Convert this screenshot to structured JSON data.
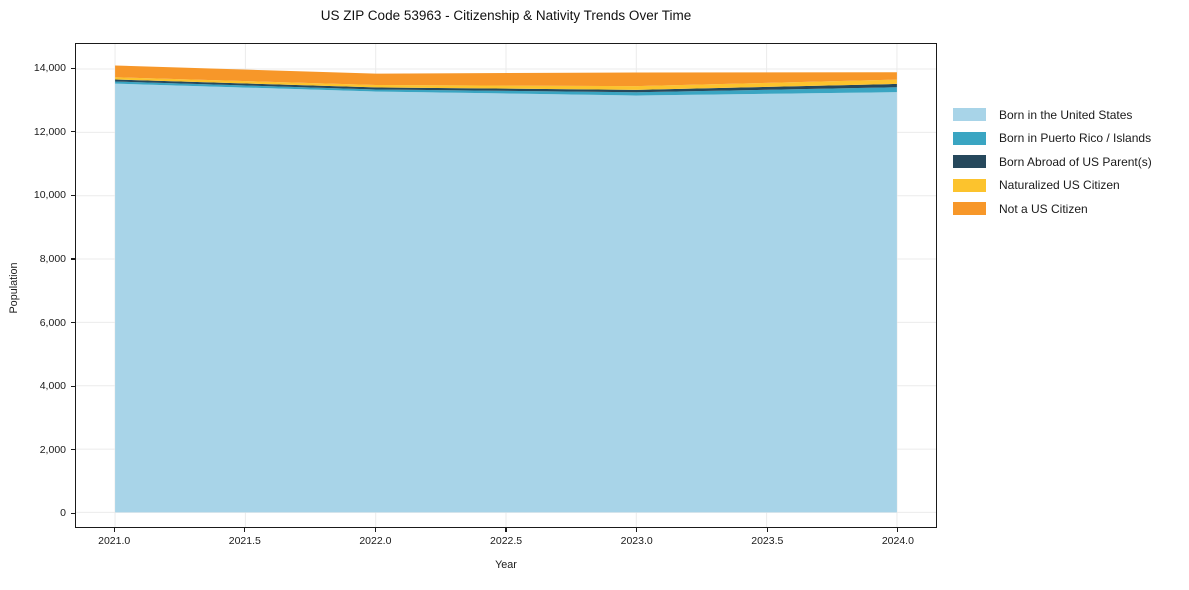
{
  "title": "US ZIP Code 53963 - Citizenship & Nativity Trends Over Time",
  "chart_data": {
    "type": "area",
    "stacked": true,
    "title": "US ZIP Code 53963 - Citizenship & Nativity Trends Over Time",
    "xlabel": "Year",
    "ylabel": "Population",
    "x": [
      2021,
      2022,
      2023,
      2024
    ],
    "series": [
      {
        "name": "Born in the United States",
        "color": "#a8d4e8",
        "values": [
          13540,
          13290,
          13165,
          13270
        ]
      },
      {
        "name": "Born in Puerto Rico / Islands",
        "color": "#3aa5c2",
        "values": [
          65,
          65,
          100,
          155
        ]
      },
      {
        "name": "Born Abroad of US Parent(s)",
        "color": "#26485c",
        "values": [
          65,
          65,
          75,
          105
        ]
      },
      {
        "name": "Naturalized US Citizen",
        "color": "#fcc32d",
        "values": [
          70,
          75,
          120,
          135
        ]
      },
      {
        "name": "Not a US Citizen",
        "color": "#f79729",
        "values": [
          370,
          360,
          430,
          235
        ]
      }
    ],
    "totals": [
      14110,
      13855,
      13890,
      13900
    ],
    "xlim": [
      2020.85,
      2024.15
    ],
    "ylim": [
      -460,
      14790
    ],
    "xticks": [
      2021.0,
      2021.5,
      2022.0,
      2022.5,
      2023.0,
      2023.5,
      2024.0
    ],
    "xtick_labels": [
      "2021.0",
      "2021.5",
      "2022.0",
      "2022.5",
      "2023.0",
      "2023.5",
      "2024.0"
    ],
    "yticks": [
      0,
      2000,
      4000,
      6000,
      8000,
      10000,
      12000,
      14000
    ],
    "ytick_labels": [
      "0",
      "2,000",
      "4,000",
      "6,000",
      "8,000",
      "10,000",
      "12,000",
      "14,000"
    ],
    "grid": true,
    "grid_color": "#ebebeb",
    "legend_position": "right-outside"
  }
}
